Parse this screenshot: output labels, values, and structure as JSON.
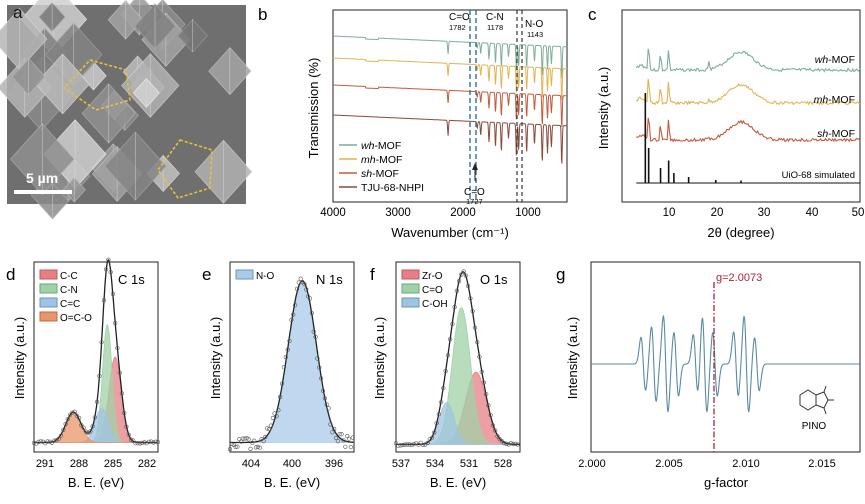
{
  "colors": {
    "wh": "#7fae99",
    "mh": "#e3b451",
    "sh": "#c35a3e",
    "tju": "#8a4a3c",
    "sim": "#111111",
    "dash_blue": "#2d6ea3",
    "dash_dark": "#333333",
    "cc": "#e87f86",
    "cn": "#9fd2a6",
    "ceqc": "#9fc4e3",
    "oco": "#e8956a",
    "no": "#a9cbea",
    "zro": "#e87f86",
    "co": "#9fd2a6",
    "coh": "#9fc4e3",
    "epr": "#5b8aa6",
    "gline": "#a8243b"
  },
  "panels": {
    "a": {
      "label": "a",
      "scale": "5 µm"
    },
    "b": {
      "label": "b"
    },
    "c": {
      "label": "c"
    },
    "d": {
      "label": "d"
    },
    "e": {
      "label": "e"
    },
    "f": {
      "label": "f"
    },
    "g": {
      "label": "g"
    }
  },
  "chart_data": [
    {
      "panel": "b",
      "type": "line",
      "xlabel": "Wavenumber (cm⁻¹)",
      "ylabel": "Transmission (%)",
      "xlim": [
        4000,
        400
      ],
      "xticks": [
        "4000",
        "3000",
        "2000",
        "1000"
      ],
      "series": [
        {
          "name": "wh-MOF",
          "name_italic": "wh",
          "name_rest": "-MOF",
          "offset": 0
        },
        {
          "name": "mh-MOF",
          "name_italic": "mh",
          "name_rest": "-MOF",
          "offset": 1
        },
        {
          "name": "sh-MOF",
          "name_italic": "sh",
          "name_rest": "-MOF",
          "offset": 2
        },
        {
          "name": "TJU-68-NHPI",
          "name_italic": "",
          "name_rest": "TJU-68-NHPI",
          "offset": 3
        }
      ],
      "annotations": [
        {
          "text": "C=O",
          "sub": "1782",
          "x": 1782
        },
        {
          "text": "C-N",
          "sub": "1178",
          "x": 1178
        },
        {
          "text": "N-O",
          "sub": "1143",
          "x": 1143
        },
        {
          "text": "C=O",
          "sub": "1727",
          "x": 1727
        }
      ]
    },
    {
      "panel": "c",
      "type": "line",
      "xlabel": "2θ (degree)",
      "ylabel": "Intensity (a.u.)",
      "xlim": [
        0,
        50
      ],
      "xticks": [
        "10",
        "20",
        "30",
        "40",
        "50"
      ],
      "series": [
        {
          "name": "wh-MOF",
          "name_italic": "wh",
          "name_rest": "-MOF"
        },
        {
          "name": "mh-MOF",
          "name_italic": "mh",
          "name_rest": "-MOF"
        },
        {
          "name": "sh-MOF",
          "name_italic": "sh",
          "name_rest": "-MOF"
        },
        {
          "name": "UiO-68 simulated",
          "name_italic": "",
          "name_rest": "UiO-68 simulated"
        }
      ],
      "peaks_2theta": [
        4.9,
        5.6,
        8.1,
        9.8,
        10.9,
        14.0,
        19.7,
        25.0
      ]
    },
    {
      "panel": "d",
      "type": "area",
      "title": "C 1s",
      "xlabel": "B. E. (eV)",
      "ylabel": "Intensity (a.u.)",
      "xlim": [
        292,
        281
      ],
      "xticks": [
        "291",
        "288",
        "285",
        "282"
      ],
      "series": [
        {
          "name": "C-C",
          "center": 284.8,
          "height": 0.45,
          "fwhm": 1.3
        },
        {
          "name": "C-N",
          "center": 285.5,
          "height": 0.62,
          "fwhm": 1.0
        },
        {
          "name": "C=C",
          "center": 286.0,
          "height": 0.18,
          "fwhm": 1.4
        },
        {
          "name": "O=C-O",
          "center": 288.5,
          "height": 0.16,
          "fwhm": 1.6
        }
      ]
    },
    {
      "panel": "e",
      "type": "area",
      "title": "N 1s",
      "xlabel": "B. E. (eV)",
      "ylabel": "Intensity (a.u.)",
      "xlim": [
        407,
        395
      ],
      "xticks": [
        "404",
        "400",
        "396"
      ],
      "series": [
        {
          "name": "N-O",
          "center": 400.0,
          "height": 0.85,
          "fwhm": 3.2
        }
      ]
    },
    {
      "panel": "f",
      "type": "area",
      "title": "O 1s",
      "xlabel": "B. E. (eV)",
      "ylabel": "Intensity (a.u.)",
      "xlim": [
        537.5,
        526.5
      ],
      "xticks": [
        "537",
        "534",
        "531",
        "528"
      ],
      "series": [
        {
          "name": "Zr-O",
          "center": 530.4,
          "height": 0.38,
          "fwhm": 2.2
        },
        {
          "name": "C=O",
          "center": 531.7,
          "height": 0.72,
          "fwhm": 1.9
        },
        {
          "name": "C-OH",
          "center": 533.0,
          "height": 0.22,
          "fwhm": 1.6
        }
      ]
    },
    {
      "panel": "g",
      "type": "line",
      "xlabel": "g-factor",
      "ylabel": "Intensity (a.u.)",
      "xlim": [
        2.0,
        2.018
      ],
      "xticks": [
        "2.000",
        "2.005",
        "2.010",
        "2.015"
      ],
      "annotation": "g=2.0073",
      "g_marker": 2.0073,
      "inset_label": "PINO"
    }
  ]
}
